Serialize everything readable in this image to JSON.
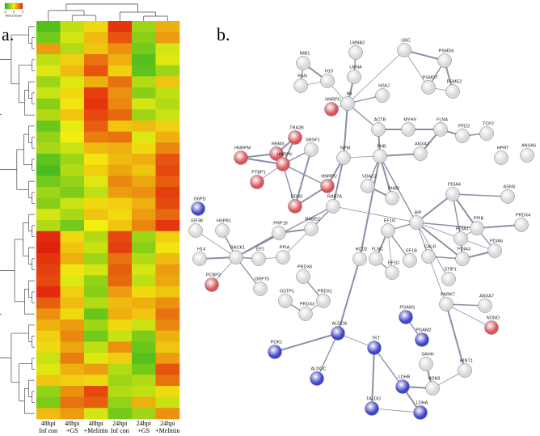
{
  "panel_a": {
    "label": "a.",
    "heatmap": {
      "key_title": "Row Z-Score",
      "key_range": [
        -2,
        2
      ],
      "key_ticks": [
        -2,
        0,
        2
      ],
      "colors": [
        "#20b020",
        "#f2ee10",
        "#e2200e"
      ],
      "columns": [
        [
          "48hpi",
          "Inf con"
        ],
        [
          "48hpi",
          "+GS"
        ],
        [
          "48hpi",
          "+Melittin"
        ],
        [
          "24hpi",
          "Inf con"
        ],
        [
          "24hpi",
          "+GS"
        ],
        [
          "24hpi",
          "+Melittin"
        ]
      ],
      "rows": [
        [
          -1.5,
          -0.5,
          0.2,
          1.8,
          -0.8,
          0.6
        ],
        [
          -1.2,
          -0.3,
          0.5,
          1.5,
          -1.0,
          0.8
        ],
        [
          0.8,
          -0.6,
          0.4,
          0.9,
          -1.2,
          -0.3
        ],
        [
          -0.5,
          0.3,
          1.2,
          0.6,
          -1.5,
          -0.2
        ],
        [
          -0.2,
          0.5,
          1.5,
          0.3,
          -1.4,
          -0.8
        ],
        [
          -0.8,
          -0.2,
          0.6,
          1.2,
          -0.6,
          0.4
        ],
        [
          -0.4,
          0.2,
          1.7,
          0.9,
          -1.0,
          -0.5
        ],
        [
          -1.0,
          0.1,
          1.8,
          1.0,
          -0.3,
          -0.6
        ],
        [
          -0.6,
          0.4,
          1.6,
          1.3,
          -0.8,
          -0.4
        ],
        [
          -1.3,
          -0.1,
          1.4,
          0.4,
          0.5,
          0.3
        ],
        [
          -0.9,
          0.0,
          1.1,
          1.2,
          -0.2,
          0.6
        ],
        [
          -0.7,
          -0.4,
          0.5,
          0.6,
          0.2,
          1.0
        ],
        [
          -1.4,
          -0.8,
          0.1,
          0.5,
          0.6,
          1.5
        ],
        [
          -1.6,
          -0.6,
          0.3,
          0.7,
          0.4,
          1.6
        ],
        [
          -1.2,
          -0.9,
          -0.2,
          1.0,
          0.7,
          1.4
        ],
        [
          -0.8,
          -1.1,
          -0.5,
          0.8,
          0.9,
          1.7
        ],
        [
          -1.0,
          -0.4,
          0.2,
          0.3,
          0.6,
          1.6
        ],
        [
          -0.3,
          -0.7,
          0.4,
          0.2,
          0.8,
          1.3
        ],
        [
          -0.6,
          -1.2,
          0.0,
          0.4,
          1.0,
          1.8
        ],
        [
          1.9,
          0.2,
          -0.6,
          1.6,
          -0.8,
          0.3
        ],
        [
          2.0,
          0.4,
          -0.4,
          1.7,
          -1.0,
          0.1
        ],
        [
          1.8,
          0.6,
          -0.8,
          1.2,
          -0.6,
          0.5
        ],
        [
          1.7,
          0.1,
          -0.3,
          1.4,
          -0.3,
          0.8
        ],
        [
          1.6,
          -0.2,
          -0.9,
          1.3,
          -0.5,
          0.7
        ],
        [
          1.9,
          0.3,
          -1.0,
          0.8,
          0.2,
          0.4
        ],
        [
          1.4,
          0.5,
          -0.6,
          0.5,
          0.6,
          0.9
        ],
        [
          0.9,
          0.2,
          -1.3,
          0.6,
          0.4,
          1.2
        ],
        [
          0.6,
          0.8,
          -0.8,
          0.2,
          -0.4,
          1.0
        ],
        [
          0.3,
          1.0,
          -1.2,
          -0.4,
          -1.1,
          0.6
        ],
        [
          0.2,
          0.7,
          -0.5,
          0.9,
          -1.3,
          0.4
        ],
        [
          -0.4,
          1.1,
          -0.2,
          0.3,
          -1.5,
          0.8
        ],
        [
          -0.2,
          0.6,
          0.8,
          -0.6,
          -1.2,
          1.5
        ],
        [
          0.4,
          0.3,
          0.2,
          -0.8,
          -0.6,
          1.2
        ],
        [
          -0.9,
          0.9,
          1.6,
          -0.6,
          -0.5,
          0.2
        ],
        [
          -1.1,
          1.2,
          1.4,
          -0.9,
          0.6,
          -0.4
        ],
        [
          0.5,
          0.8,
          -0.3,
          -1.2,
          -0.8,
          0.9
        ]
      ]
    }
  },
  "panel_b": {
    "label": "b.",
    "nodes": [
      {
        "label": "IMB1",
        "color": "#d8d8d8"
      },
      {
        "label": "RAN",
        "color": "#d8d8d8"
      },
      {
        "label": "H10",
        "color": "#d8d8d8"
      },
      {
        "label": "LMNB2",
        "color": "#d8d8d8"
      },
      {
        "label": "LMNA",
        "color": "#d8d8d8"
      },
      {
        "label": "UBC",
        "color": "#d8d8d8"
      },
      {
        "label": "H2AJ",
        "color": "#d8d8d8"
      },
      {
        "label": "H4",
        "color": "#d8d8d8"
      },
      {
        "label": "HNRPC",
        "color": "#d9545a"
      },
      {
        "label": "PSMD6",
        "color": "#d8d8d8"
      },
      {
        "label": "PSMD7",
        "color": "#d8d8d8"
      },
      {
        "label": "PSME2",
        "color": "#d8d8d8"
      },
      {
        "label": "ACTB",
        "color": "#d8d8d8"
      },
      {
        "label": "MYH9",
        "color": "#d8d8d8"
      },
      {
        "label": "FLNA",
        "color": "#d8d8d8"
      },
      {
        "label": "PFD2",
        "color": "#d8d8d8"
      },
      {
        "label": "TCP2",
        "color": "#d8d8d8"
      },
      {
        "label": "TRA2B",
        "color": "#d9545a"
      },
      {
        "label": "RBMX",
        "color": "#d9545a"
      },
      {
        "label": "SRSF1",
        "color": "#d8d8d8"
      },
      {
        "label": "HNRPM",
        "color": "#d9545a"
      },
      {
        "label": "HNRPK",
        "color": "#d9545a"
      },
      {
        "label": "NPM",
        "color": "#d8d8d8"
      },
      {
        "label": "PHB",
        "color": "#d8d8d8"
      },
      {
        "label": "ANXA2",
        "color": "#d8d8d8"
      },
      {
        "label": "HPRT",
        "color": "#d8d8d8"
      },
      {
        "label": "ANXA6",
        "color": "#d8d8d8"
      },
      {
        "label": "PTBP1",
        "color": "#d9545a"
      },
      {
        "label": "HNRPU",
        "color": "#d9545a"
      },
      {
        "label": "VDAC2",
        "color": "#d8d8d8"
      },
      {
        "label": "PHB2",
        "color": "#d8d8d8"
      },
      {
        "label": "DDX5",
        "color": "#d9545a"
      },
      {
        "label": "G6PD",
        "color": "#3f43c9"
      },
      {
        "label": "EIF3K",
        "color": "#d8d8d8"
      },
      {
        "label": "HSPB1",
        "color": "#d8d8d8"
      },
      {
        "label": "PRP19",
        "color": "#d8d8d8"
      },
      {
        "label": "RABEC",
        "color": "#d8d8d8"
      },
      {
        "label": "RAB7A",
        "color": "#d8d8d8"
      },
      {
        "label": "BIP",
        "color": "#d8d8d8"
      },
      {
        "label": "PDIA4",
        "color": "#d8d8d8"
      },
      {
        "label": "ASNS",
        "color": "#d8d8d8"
      },
      {
        "label": "PPIB",
        "color": "#d8d8d8"
      },
      {
        "label": "PRDX4",
        "color": "#d8d8d8"
      },
      {
        "label": "PDIA1",
        "color": "#d8d8d8"
      },
      {
        "label": "PDIA6",
        "color": "#d8d8d8"
      },
      {
        "label": "PDIA3",
        "color": "#d8d8d8"
      },
      {
        "label": "CALR",
        "color": "#d8d8d8"
      },
      {
        "label": "EF1G",
        "color": "#d8d8d8"
      },
      {
        "label": "FLNC",
        "color": "#d8d8d8"
      },
      {
        "label": "EF1D",
        "color": "#d8d8d8"
      },
      {
        "label": "EF1B",
        "color": "#d8d8d8"
      },
      {
        "label": "HCD2",
        "color": "#d8d8d8"
      },
      {
        "label": "STIP1",
        "color": "#d8d8d8"
      },
      {
        "label": "H14",
        "color": "#d8d8d8"
      },
      {
        "label": "RACK1",
        "color": "#d8d8d8"
      },
      {
        "label": "EF2",
        "color": "#d8d8d8"
      },
      {
        "label": "PPIA",
        "color": "#d8d8d8"
      },
      {
        "label": "PCBP2",
        "color": "#d9545a"
      },
      {
        "label": "GRP75",
        "color": "#d8d8d8"
      },
      {
        "label": "PRDX6",
        "color": "#d8d8d8"
      },
      {
        "label": "GSTP1",
        "color": "#d8d8d8"
      },
      {
        "label": "PRDX3",
        "color": "#d8d8d8"
      },
      {
        "label": "PRDX1",
        "color": "#d8d8d8"
      },
      {
        "label": "ANXA7",
        "color": "#d8d8d8"
      },
      {
        "label": "PARK7",
        "color": "#d8d8d8"
      },
      {
        "label": "NONO",
        "color": "#d9545a"
      },
      {
        "label": "PGAM1",
        "color": "#3f43c9"
      },
      {
        "label": "PGAM2",
        "color": "#3f43c9"
      },
      {
        "label": "ALDOA",
        "color": "#3f43c9"
      },
      {
        "label": "PGK1",
        "color": "#3f43c9"
      },
      {
        "label": "TKT",
        "color": "#3f43c9"
      },
      {
        "label": "ALDOC",
        "color": "#3f43c9"
      },
      {
        "label": "SAHH",
        "color": "#d8d8d8"
      },
      {
        "label": "HINT1",
        "color": "#d8d8d8"
      },
      {
        "label": "NDK8",
        "color": "#d8d8d8"
      },
      {
        "label": "LDHB",
        "color": "#3f43c9"
      },
      {
        "label": "TALDO",
        "color": "#3f43c9"
      },
      {
        "label": "LDHA",
        "color": "#3f43c9"
      }
    ]
  }
}
